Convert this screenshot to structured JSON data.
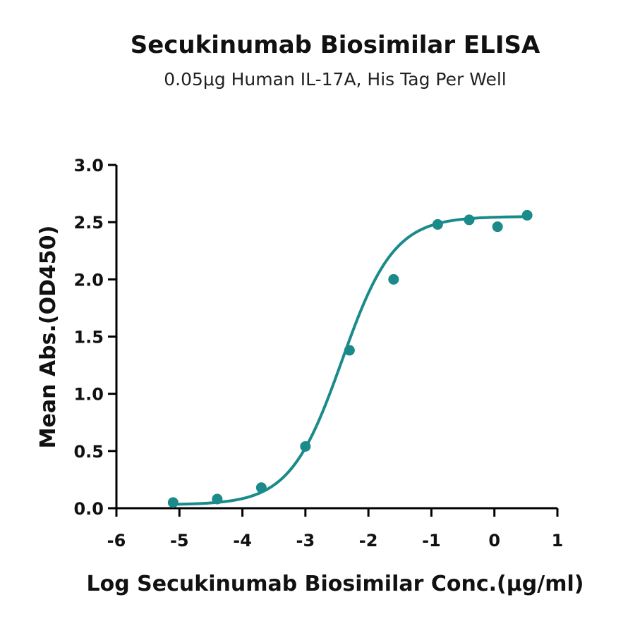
{
  "chart_data": {
    "type": "scatter",
    "title": "Secukinumab Biosimilar ELISA",
    "subtitle": "0.05μg Human IL-17A, His Tag Per Well",
    "xlabel": "Log Secukinumab Biosimilar Conc.(μg/ml)",
    "ylabel": "Mean Abs.(OD450)",
    "xlim": [
      -6,
      1
    ],
    "ylim": [
      0,
      3
    ],
    "xticks": [
      -6,
      -5,
      -4,
      -3,
      -2,
      -1,
      0,
      1
    ],
    "yticks": [
      0.0,
      0.5,
      1.0,
      1.5,
      2.0,
      2.5,
      3.0
    ],
    "xtick_labels": [
      "-6",
      "-5",
      "-4",
      "-3",
      "-2",
      "-1",
      "0",
      "1"
    ],
    "ytick_labels": [
      "0.0",
      "0.5",
      "1.0",
      "1.5",
      "2.0",
      "2.5",
      "3.0"
    ],
    "grid": false,
    "color": "#1a8a8a",
    "series": [
      {
        "points": [
          {
            "x": -5.1,
            "y": 0.05
          },
          {
            "x": -4.4,
            "y": 0.08
          },
          {
            "x": -3.7,
            "y": 0.18
          },
          {
            "x": -3.0,
            "y": 0.54
          },
          {
            "x": -2.3,
            "y": 1.38
          },
          {
            "x": -1.6,
            "y": 2.0
          },
          {
            "x": -0.9,
            "y": 2.48
          },
          {
            "x": -0.4,
            "y": 2.52
          },
          {
            "x": 0.05,
            "y": 2.46
          },
          {
            "x": 0.52,
            "y": 2.56
          }
        ],
        "fit": {
          "model": "4PL",
          "bottom": 0.03,
          "top": 2.55,
          "log_ec50": -2.42,
          "hill_slope": 1.05,
          "x_range": [
            -5.1,
            0.52
          ]
        }
      }
    ]
  }
}
